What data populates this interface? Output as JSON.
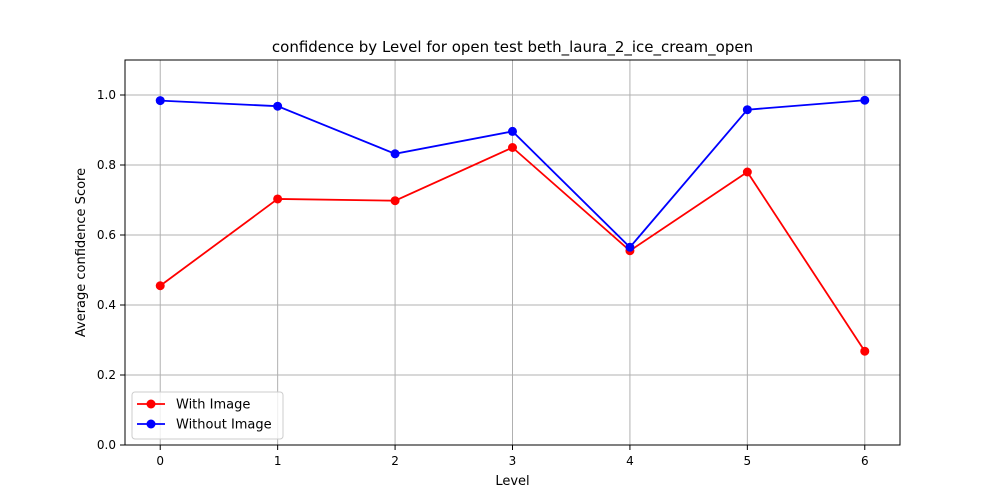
{
  "chart_data": {
    "type": "line",
    "title": "confidence by Level for open test beth_laura_2_ice_cream_open",
    "xlabel": "Level",
    "ylabel": "Average confidence Score",
    "x": [
      0,
      1,
      2,
      3,
      4,
      5,
      6
    ],
    "xlim": [
      -0.3,
      6.3
    ],
    "ylim": [
      0.0,
      1.1
    ],
    "xticks": [
      0,
      1,
      2,
      3,
      4,
      5,
      6
    ],
    "yticks": [
      0.0,
      0.2,
      0.4,
      0.6,
      0.8,
      1.0
    ],
    "grid": true,
    "legend_position": "lower-left",
    "series": [
      {
        "name": "With Image",
        "color": "#ff0000",
        "values": [
          0.455,
          0.703,
          0.698,
          0.85,
          0.555,
          0.78,
          0.268
        ]
      },
      {
        "name": "Without Image",
        "color": "#0000ff",
        "values": [
          0.984,
          0.968,
          0.832,
          0.896,
          0.565,
          0.958,
          0.985
        ]
      }
    ]
  }
}
